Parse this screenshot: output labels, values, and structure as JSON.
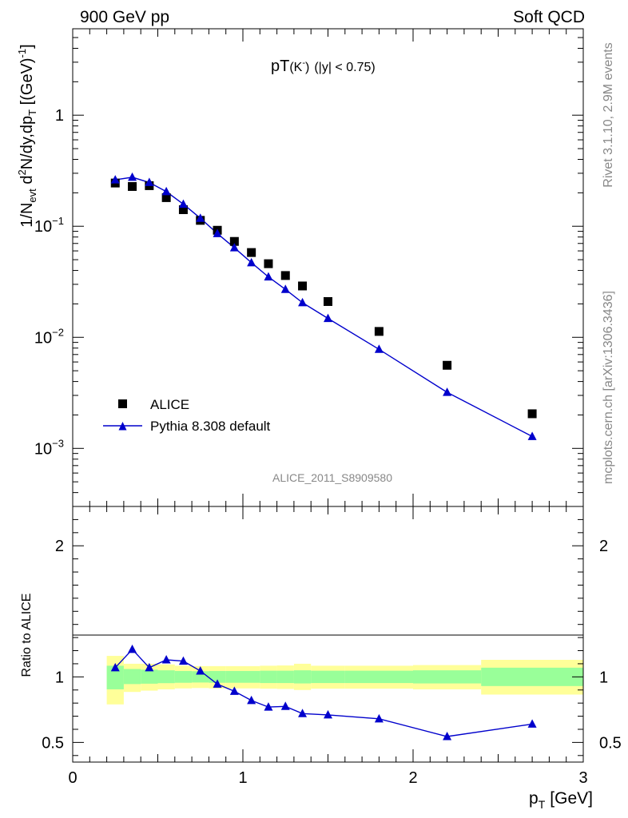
{
  "header": {
    "left": "900 GeV pp",
    "right": "Soft QCD"
  },
  "side": {
    "rivet": "Rivet 3.1.10,  2.9M events",
    "mcplots": "mcplots.cern.ch [arXiv:1306.3436]"
  },
  "chart_data": [
    {
      "type": "scatter",
      "title": "pT(K⁻) (|y| < 0.75)",
      "title_main": "pT",
      "title_particle": "(K",
      "title_charge": "-",
      "title_close": ")",
      "title_rest": "(|y| < 0.75)",
      "ylabel": "1/N_evt d²N/dy,dp_T [(GeV)⁻¹]",
      "yscale": "log",
      "ylim": [
        0.0003,
        6
      ],
      "xlim": [
        0,
        3
      ],
      "yticks": [
        {
          "v": 0.001,
          "base": "10",
          "exp": "−3"
        },
        {
          "v": 0.01,
          "base": "10",
          "exp": "−2"
        },
        {
          "v": 0.1,
          "base": "10",
          "exp": "−1"
        },
        {
          "v": 1,
          "base": "1",
          "exp": ""
        }
      ],
      "watermark": "ALICE_2011_S8909580",
      "legend_position": "bottom-left",
      "series": [
        {
          "name": "ALICE",
          "marker": "square",
          "color": "#000000",
          "x": [
            0.25,
            0.35,
            0.45,
            0.55,
            0.65,
            0.75,
            0.85,
            0.95,
            1.05,
            1.15,
            1.25,
            1.35,
            1.5,
            1.8,
            2.2,
            2.7
          ],
          "y": [
            0.245,
            0.228,
            0.232,
            0.181,
            0.141,
            0.113,
            0.092,
            0.073,
            0.058,
            0.046,
            0.036,
            0.029,
            0.021,
            0.0113,
            0.0056,
            0.00205
          ]
        },
        {
          "name": "Pythia 8.308 default",
          "marker": "triangle",
          "line": true,
          "color": "#0000cc",
          "x": [
            0.25,
            0.35,
            0.45,
            0.55,
            0.65,
            0.75,
            0.85,
            0.95,
            1.05,
            1.15,
            1.25,
            1.35,
            1.5,
            1.8,
            2.2,
            2.7
          ],
          "y": [
            0.262,
            0.276,
            0.248,
            0.205,
            0.158,
            0.118,
            0.086,
            0.064,
            0.047,
            0.035,
            0.027,
            0.0205,
            0.0148,
            0.0078,
            0.0032,
            0.00128
          ]
        }
      ]
    },
    {
      "type": "line",
      "ylabel": "Ratio to ALICE",
      "xlabel": "p_T [GeV]",
      "xlabel_main": "p",
      "xlabel_sub": "T",
      "xlabel_unit": "[GeV]",
      "xlim": [
        0,
        3
      ],
      "ylim": [
        0.35,
        2.3
      ],
      "xticks": [
        0,
        1,
        2,
        3
      ],
      "yticks": [
        0.5,
        1,
        2
      ],
      "ytick_labels": [
        "0.5",
        "1",
        "2"
      ],
      "bands": [
        {
          "x0": 0.2,
          "x1": 0.3,
          "inner": [
            0.905,
            1.085
          ],
          "outer": [
            0.79,
            1.16
          ]
        },
        {
          "x0": 0.3,
          "x1": 0.4,
          "inner": [
            0.945,
            1.06
          ],
          "outer": [
            0.885,
            1.1
          ]
        },
        {
          "x0": 0.4,
          "x1": 0.5,
          "inner": [
            0.948,
            1.055
          ],
          "outer": [
            0.895,
            1.1
          ]
        },
        {
          "x0": 0.5,
          "x1": 0.6,
          "inner": [
            0.952,
            1.05
          ],
          "outer": [
            0.905,
            1.095
          ]
        },
        {
          "x0": 0.6,
          "x1": 0.7,
          "inner": [
            0.955,
            1.045
          ],
          "outer": [
            0.912,
            1.085
          ]
        },
        {
          "x0": 0.7,
          "x1": 0.8,
          "inner": [
            0.957,
            1.043
          ],
          "outer": [
            0.915,
            1.082
          ]
        },
        {
          "x0": 0.8,
          "x1": 0.9,
          "inner": [
            0.955,
            1.045
          ],
          "outer": [
            0.912,
            1.082
          ]
        },
        {
          "x0": 0.9,
          "x1": 1.0,
          "inner": [
            0.955,
            1.045
          ],
          "outer": [
            0.912,
            1.082
          ]
        },
        {
          "x0": 1.0,
          "x1": 1.1,
          "inner": [
            0.955,
            1.045
          ],
          "outer": [
            0.912,
            1.082
          ]
        },
        {
          "x0": 1.1,
          "x1": 1.2,
          "inner": [
            0.953,
            1.047
          ],
          "outer": [
            0.91,
            1.085
          ]
        },
        {
          "x0": 1.2,
          "x1": 1.3,
          "inner": [
            0.953,
            1.047
          ],
          "outer": [
            0.908,
            1.087
          ]
        },
        {
          "x0": 1.3,
          "x1": 1.4,
          "inner": [
            0.95,
            1.05
          ],
          "outer": [
            0.9,
            1.1
          ]
        },
        {
          "x0": 1.4,
          "x1": 1.6,
          "inner": [
            0.953,
            1.047
          ],
          "outer": [
            0.91,
            1.085
          ]
        },
        {
          "x0": 1.6,
          "x1": 2.0,
          "inner": [
            0.953,
            1.047
          ],
          "outer": [
            0.91,
            1.085
          ]
        },
        {
          "x0": 2.0,
          "x1": 2.4,
          "inner": [
            0.95,
            1.05
          ],
          "outer": [
            0.905,
            1.09
          ]
        },
        {
          "x0": 2.4,
          "x1": 3.0,
          "inner": [
            0.93,
            1.07
          ],
          "outer": [
            0.865,
            1.13
          ]
        }
      ],
      "band_colors": {
        "inner": "#99ff99",
        "outer": "#ffff99"
      },
      "series": [
        {
          "name": "Pythia 8.308 default",
          "color": "#0000cc",
          "x": [
            0.25,
            0.35,
            0.45,
            0.55,
            0.65,
            0.75,
            0.85,
            0.95,
            1.05,
            1.15,
            1.25,
            1.35,
            1.5,
            1.8,
            2.2,
            2.7
          ],
          "y": [
            1.07,
            1.21,
            1.07,
            1.13,
            1.12,
            1.045,
            0.945,
            0.89,
            0.82,
            0.77,
            0.775,
            0.72,
            0.71,
            0.68,
            0.545,
            0.64
          ]
        }
      ]
    }
  ]
}
